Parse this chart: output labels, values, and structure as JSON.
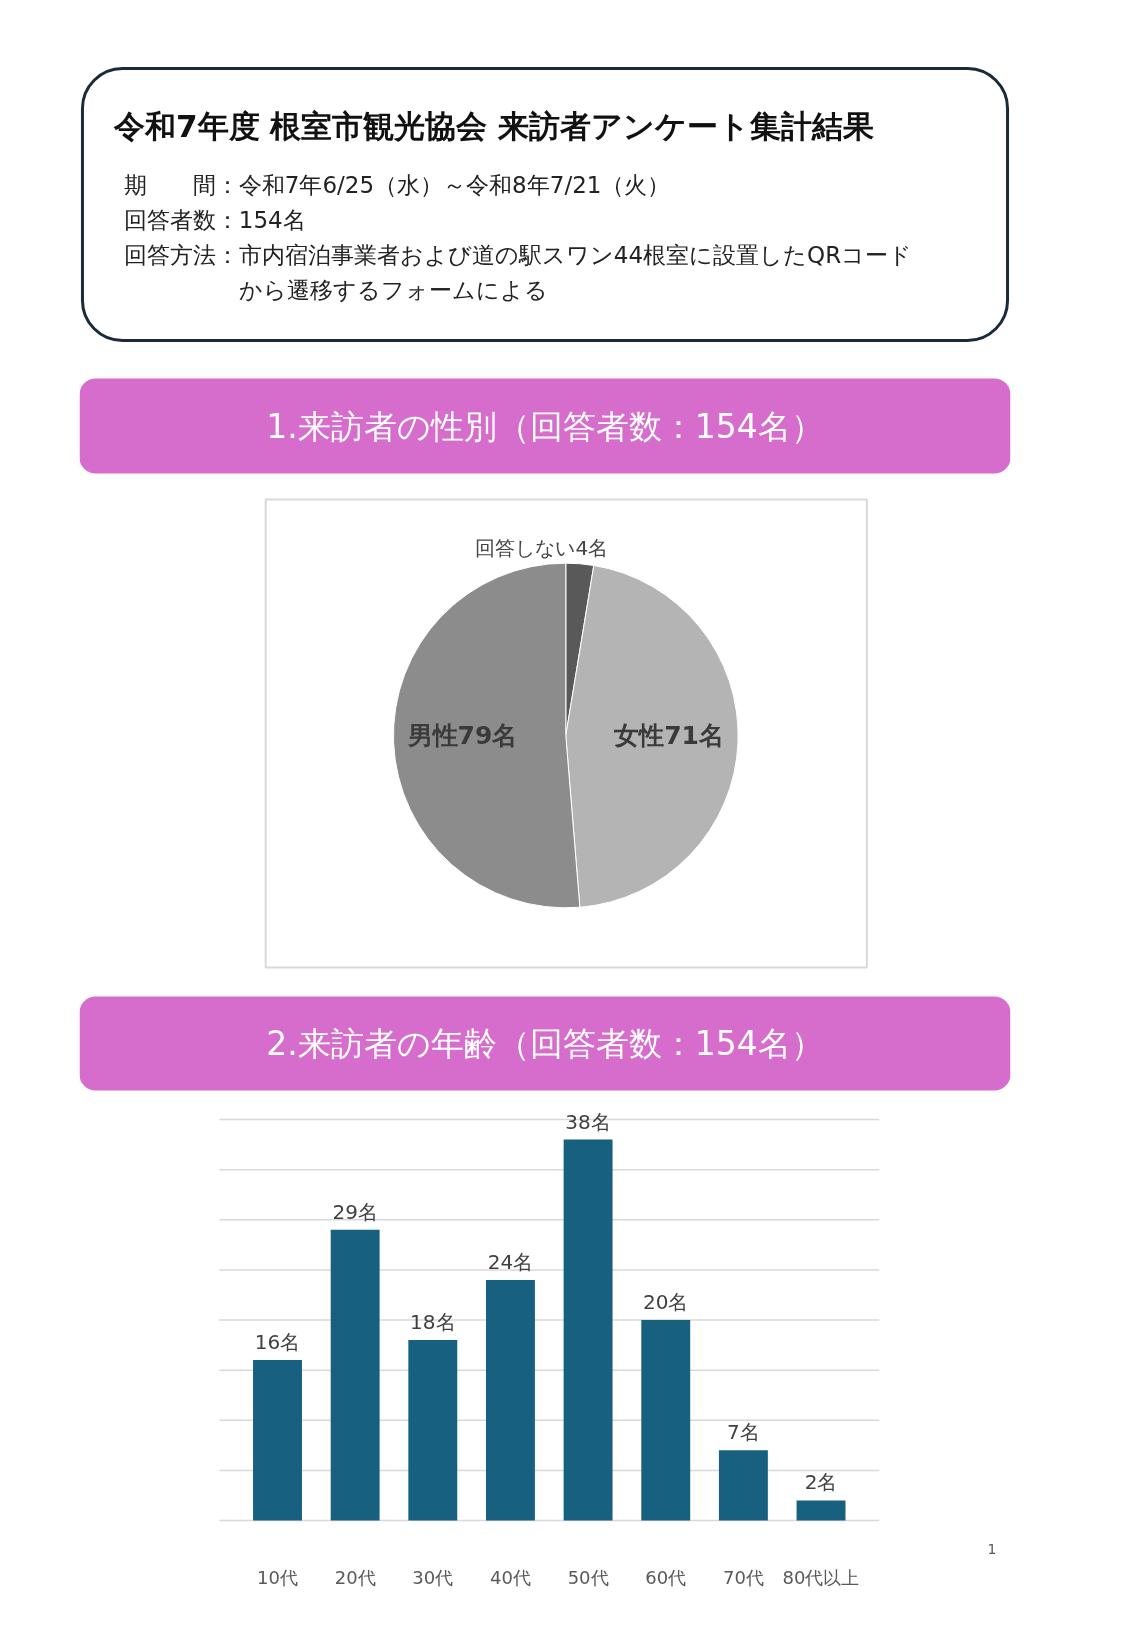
{
  "chart_data": [
    {
      "type": "other",
      "title": "令和7年度 根室市観光協会 来訪者アンケート集計結果",
      "annotations": [
        "期　　間：令和7年6/25（水）～令和8年7/21（火）",
        "回答者数：154名",
        "回答方法：市内宿泊事業者および道の駅スワン44根室に設置したQRコード",
        "　　　　　から遷移するフォームによる"
      ]
    },
    {
      "type": "pie",
      "title": "1.来訪者の性別（回答者数：154名）",
      "categories": [
        "回答しない",
        "女性",
        "男性"
      ],
      "values": [
        4,
        71,
        79
      ],
      "colors": [
        "#595959",
        "#b4b4b4",
        "#8c8c8c"
      ],
      "value_labels": [
        "4名",
        "71名",
        "79名"
      ]
    },
    {
      "type": "bar",
      "title": "2.来訪者の年齢（回答者数：154名）",
      "categories": [
        "10代",
        "20代",
        "30代",
        "40代",
        "50代",
        "60代",
        "70代",
        "80代以上"
      ],
      "values": [
        16,
        29,
        18,
        24,
        38,
        20,
        7,
        2
      ],
      "color": "#18607f",
      "ylim": [
        0,
        40
      ],
      "yticks": [
        0,
        5,
        10,
        15,
        20,
        25,
        30,
        35,
        40
      ],
      "grid": "y",
      "tick_labels": "x",
      "value_labels": [
        "16名",
        "29名",
        "18名",
        "24名",
        "38名",
        "20名",
        "7名",
        "2名"
      ],
      "annotations": [
        "1"
      ]
    }
  ]
}
